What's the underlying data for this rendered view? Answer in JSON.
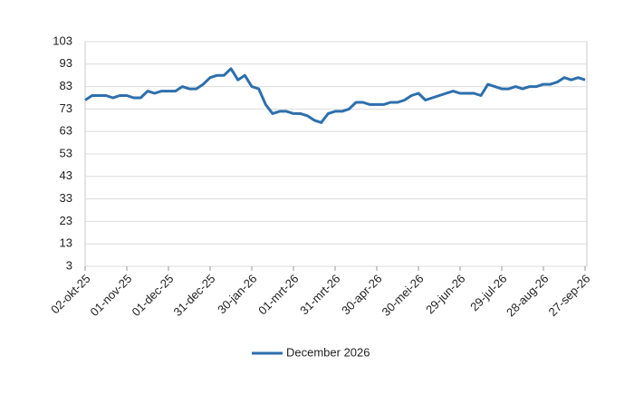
{
  "chart_data": {
    "type": "line",
    "categories": [
      "02-okt-25",
      null,
      null,
      null,
      null,
      null,
      "01-nov-25",
      null,
      null,
      null,
      null,
      null,
      "01-dec-25",
      null,
      null,
      null,
      null,
      null,
      "31-dec-25",
      null,
      null,
      null,
      null,
      null,
      "30-jan-26",
      null,
      null,
      null,
      null,
      null,
      "01-mrt-26",
      null,
      null,
      null,
      null,
      null,
      "31-mrt-26",
      null,
      null,
      null,
      null,
      null,
      "30-apr-26",
      null,
      null,
      null,
      null,
      null,
      "30-mei-26",
      null,
      null,
      null,
      null,
      null,
      "29-jun-26",
      null,
      null,
      null,
      null,
      null,
      "29-jul-26",
      null,
      null,
      null,
      null,
      null,
      "28-aug-26",
      null,
      null,
      null,
      null,
      null,
      "27-sep-26"
    ],
    "series": [
      {
        "name": "December 2026",
        "color": "#2e6fad",
        "values": [
          77,
          79,
          79,
          79,
          78,
          79,
          79,
          78,
          78,
          81,
          80,
          81,
          81,
          81,
          83,
          82,
          82,
          84,
          87,
          88,
          88,
          91,
          86,
          88,
          83,
          82,
          75,
          71,
          72,
          72,
          71,
          71,
          70,
          68,
          67,
          71,
          72,
          72,
          73,
          76,
          76,
          75,
          75,
          75,
          76,
          76,
          77,
          79,
          80,
          77,
          78,
          79,
          80,
          81,
          80,
          80,
          80,
          79,
          84,
          83,
          82,
          82,
          83,
          82,
          83,
          83,
          84,
          84,
          85,
          87,
          86,
          87,
          86
        ]
      }
    ],
    "ylim": [
      3,
      103
    ],
    "yticks": [
      3,
      13,
      23,
      33,
      43,
      53,
      63,
      73,
      83,
      93,
      103
    ],
    "grid": true,
    "legend": "bottom"
  }
}
